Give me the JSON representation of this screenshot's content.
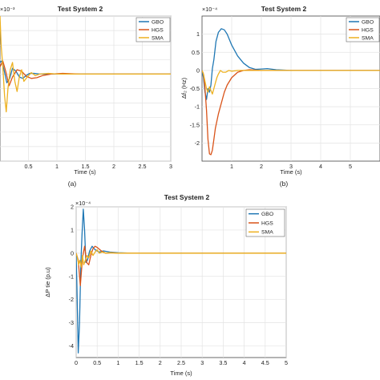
{
  "chart_data": [
    {
      "id": "a",
      "type": "line",
      "title": "Test System 2",
      "panel_label": "(a)",
      "xlabel": "Time (s)",
      "ylabel": "",
      "exponent": "×10⁻³",
      "xlim": [
        0,
        3
      ],
      "ylim": [
        -6,
        4
      ],
      "xticks": [
        "0.5",
        "1",
        "1.5",
        "2",
        "2.5",
        "3"
      ],
      "grid": true,
      "legend": "top-right",
      "series": [
        {
          "name": "GBO",
          "color": "#1f77b4",
          "x": [
            0,
            0.03,
            0.07,
            0.12,
            0.17,
            0.22,
            0.28,
            0.34,
            0.4,
            0.46,
            0.52,
            0.6,
            0.7,
            0.85,
            1.0,
            1.3,
            1.8,
            3.0
          ],
          "y": [
            0.8,
            0.9,
            0.3,
            -0.6,
            -0.3,
            0.4,
            0.2,
            -0.2,
            -0.3,
            -0.1,
            0.05,
            0.05,
            0.0,
            0.0,
            0.0,
            0.0,
            0.0,
            0.0
          ]
        },
        {
          "name": "HGS",
          "color": "#d95319",
          "x": [
            0,
            0.05,
            0.1,
            0.16,
            0.22,
            0.3,
            0.38,
            0.46,
            0.55,
            0.65,
            0.75,
            0.9,
            1.1,
            1.4,
            2.0,
            3.0
          ],
          "y": [
            0.5,
            0.9,
            0.2,
            -0.8,
            -0.2,
            0.3,
            0.2,
            -0.15,
            -0.3,
            -0.25,
            -0.1,
            0.0,
            0.05,
            0.0,
            0.0,
            0.0
          ]
        },
        {
          "name": "SMA",
          "color": "#edb120",
          "x": [
            0,
            0.02,
            0.05,
            0.08,
            0.11,
            0.14,
            0.18,
            0.22,
            0.26,
            0.3,
            0.34,
            0.38,
            0.42,
            0.48,
            0.55,
            0.62,
            0.7,
            0.85,
            1.0,
            1.5,
            3.0
          ],
          "y": [
            4.0,
            2.0,
            0.5,
            -1.5,
            -2.6,
            -1.0,
            0.3,
            0.8,
            -0.5,
            -1.2,
            -0.2,
            0.3,
            -0.5,
            -0.2,
            0.1,
            -0.1,
            0.0,
            0.05,
            0.0,
            0.0,
            0.0
          ]
        }
      ]
    },
    {
      "id": "b",
      "type": "line",
      "title": "Test System 2",
      "panel_label": "(b)",
      "xlabel": "Time (s)",
      "ylabel": "Δf₂ (Hz)",
      "exponent": "×10⁻⁴",
      "xlim": [
        0,
        6
      ],
      "ylim": [
        -2.5,
        1.5
      ],
      "xticks": [
        "1",
        "2",
        "3",
        "4",
        "5"
      ],
      "yticks": [
        "1",
        "0.5",
        "0",
        "-0.5",
        "-1",
        "-1.5",
        "-2"
      ],
      "grid": true,
      "legend": "top-right",
      "series": [
        {
          "name": "GBO",
          "color": "#1f77b4",
          "x": [
            0,
            0.05,
            0.1,
            0.15,
            0.2,
            0.25,
            0.3,
            0.35,
            0.4,
            0.47,
            0.55,
            0.65,
            0.75,
            0.85,
            1.0,
            1.2,
            1.4,
            1.6,
            1.8,
            2.0,
            2.2,
            2.5,
            3.0,
            6.0
          ],
          "y": [
            0,
            -0.2,
            -0.6,
            -0.8,
            -0.5,
            -0.6,
            -0.4,
            0.05,
            0.3,
            0.8,
            1.05,
            1.15,
            1.12,
            1.0,
            0.7,
            0.4,
            0.2,
            0.08,
            0.03,
            0.04,
            0.05,
            0.02,
            0.0,
            0.0
          ]
        },
        {
          "name": "HGS",
          "color": "#d95319",
          "x": [
            0,
            0.05,
            0.1,
            0.15,
            0.2,
            0.25,
            0.3,
            0.35,
            0.4,
            0.45,
            0.55,
            0.65,
            0.75,
            0.85,
            1.0,
            1.2,
            1.4,
            1.6,
            2.0,
            3.0,
            6.0
          ],
          "y": [
            0,
            -0.1,
            -0.5,
            -1.1,
            -1.9,
            -2.3,
            -2.32,
            -2.2,
            -1.9,
            -1.6,
            -1.2,
            -0.9,
            -0.6,
            -0.4,
            -0.2,
            -0.05,
            0.0,
            0.02,
            0.0,
            0.0,
            0.0
          ]
        },
        {
          "name": "SMA",
          "color": "#edb120",
          "x": [
            0,
            0.05,
            0.1,
            0.15,
            0.2,
            0.25,
            0.3,
            0.35,
            0.4,
            0.45,
            0.5,
            0.55,
            0.62,
            0.7,
            0.8,
            0.9,
            1.0,
            1.2,
            1.5,
            2.0,
            6.0
          ],
          "y": [
            0,
            -0.1,
            -0.3,
            -0.5,
            -0.6,
            -0.45,
            -0.55,
            -0.65,
            -0.5,
            -0.35,
            -0.2,
            -0.1,
            0.0,
            -0.05,
            -0.05,
            0.0,
            -0.02,
            0.0,
            0.0,
            0.0,
            0.0
          ]
        }
      ]
    },
    {
      "id": "c",
      "type": "line",
      "title": "Test System 2",
      "panel_label": "",
      "xlabel": "Time (s)",
      "ylabel": "ΔP tie (p.u)",
      "exponent": "×10⁻⁴",
      "xlim": [
        0,
        5
      ],
      "ylim": [
        -4.5,
        2.0
      ],
      "xticks": [
        "0",
        "0.5",
        "1",
        "1.5",
        "2",
        "2.5",
        "3",
        "3.5",
        "4",
        "4.5",
        "5"
      ],
      "yticks": [
        "2",
        "1",
        "0",
        "-1",
        "-2",
        "-3",
        "-4"
      ],
      "grid": true,
      "legend": "top-right",
      "series": [
        {
          "name": "GBO",
          "color": "#1f77b4",
          "x": [
            0,
            0.02,
            0.05,
            0.08,
            0.11,
            0.14,
            0.17,
            0.2,
            0.23,
            0.27,
            0.32,
            0.38,
            0.45,
            0.55,
            0.65,
            0.8,
            1.0,
            1.3,
            2.0,
            5.0
          ],
          "y": [
            0,
            -1.5,
            -4.3,
            -3.0,
            -0.5,
            0.8,
            1.9,
            1.0,
            -0.4,
            -0.3,
            0.1,
            0.3,
            0.15,
            0.05,
            0.1,
            0.05,
            0.02,
            0.0,
            0.0,
            0.0
          ]
        },
        {
          "name": "HGS",
          "color": "#d95319",
          "x": [
            0,
            0.05,
            0.1,
            0.15,
            0.2,
            0.25,
            0.3,
            0.35,
            0.4,
            0.45,
            0.5,
            0.6,
            0.7,
            0.85,
            1.0,
            1.3,
            2.0,
            5.0
          ],
          "y": [
            0,
            -0.3,
            -1.4,
            -0.2,
            0.3,
            -0.4,
            -0.5,
            -0.1,
            0.2,
            0.3,
            0.25,
            0.1,
            0.0,
            0.02,
            0.0,
            0.0,
            0.0,
            0.0
          ]
        },
        {
          "name": "SMA",
          "color": "#edb120",
          "x": [
            0,
            0.03,
            0.06,
            0.09,
            0.12,
            0.15,
            0.18,
            0.22,
            0.26,
            0.3,
            0.35,
            0.4,
            0.45,
            0.5,
            0.55,
            0.62,
            0.7,
            0.8,
            1.0,
            1.5,
            5.0
          ],
          "y": [
            0,
            -0.2,
            -0.5,
            -0.3,
            -0.6,
            -0.1,
            -0.5,
            -0.3,
            -0.1,
            -0.2,
            0.1,
            -0.1,
            0.05,
            0.15,
            0.0,
            0.05,
            0.0,
            0.02,
            0.0,
            0.0,
            0.0
          ]
        }
      ]
    }
  ]
}
